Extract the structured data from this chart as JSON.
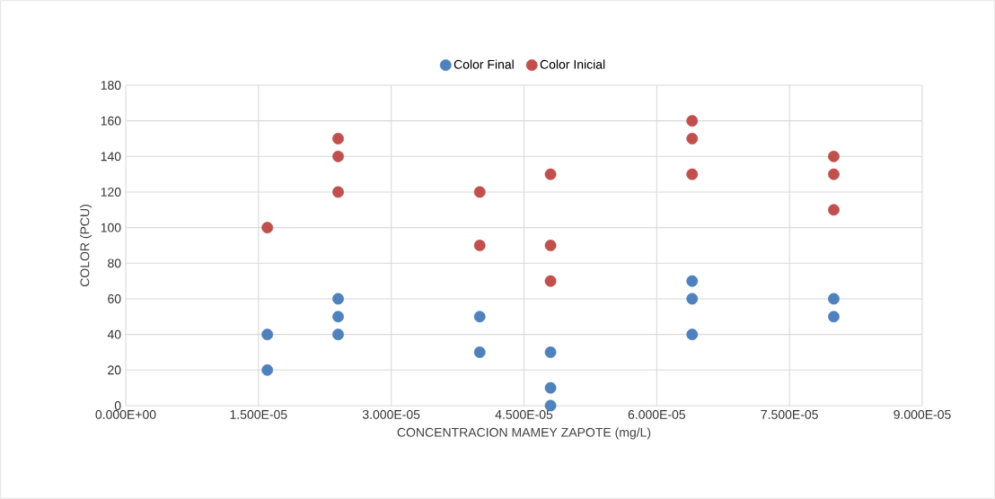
{
  "chart_data": {
    "type": "scatter",
    "xlabel": "CONCENTRACION MAMEY ZAPOTE (mg/L)",
    "ylabel": "COLOR (PCU)",
    "series": [
      {
        "name": "Color Final",
        "color": "#4f81bd",
        "x": [
          1.6e-05,
          1.6e-05,
          2.4e-05,
          2.4e-05,
          2.4e-05,
          4e-05,
          4e-05,
          4.8e-05,
          4.8e-05,
          4.8e-05,
          6.4e-05,
          6.4e-05,
          6.4e-05,
          8e-05,
          8e-05
        ],
        "values": [
          40,
          20,
          60,
          50,
          40,
          50,
          30,
          30,
          10,
          0,
          70,
          60,
          40,
          60,
          50
        ]
      },
      {
        "name": "Color Inicial",
        "color": "#c0504d",
        "x": [
          1.6e-05,
          2.4e-05,
          2.4e-05,
          2.4e-05,
          4e-05,
          4e-05,
          4.8e-05,
          4.8e-05,
          4.8e-05,
          6.4e-05,
          6.4e-05,
          6.4e-05,
          8e-05,
          8e-05,
          8e-05
        ],
        "values": [
          100,
          150,
          140,
          120,
          120,
          90,
          130,
          90,
          70,
          160,
          150,
          130,
          140,
          130,
          110
        ]
      }
    ],
    "xlim": [
      0,
      9e-05
    ],
    "ylim": [
      0,
      180
    ],
    "xticks": [
      {
        "value": 0,
        "label": "0.000E+00"
      },
      {
        "value": 1.5e-05,
        "label": "1.500E-05"
      },
      {
        "value": 3e-05,
        "label": "3.000E-05"
      },
      {
        "value": 4.5e-05,
        "label": "4.500E-05"
      },
      {
        "value": 6e-05,
        "label": "6.000E-05"
      },
      {
        "value": 7.5e-05,
        "label": "7.500E-05"
      },
      {
        "value": 9e-05,
        "label": "9.000E-05"
      }
    ],
    "yticks": [
      0,
      20,
      40,
      60,
      80,
      100,
      120,
      140,
      160,
      180
    ],
    "grid": true,
    "legend": "top"
  }
}
